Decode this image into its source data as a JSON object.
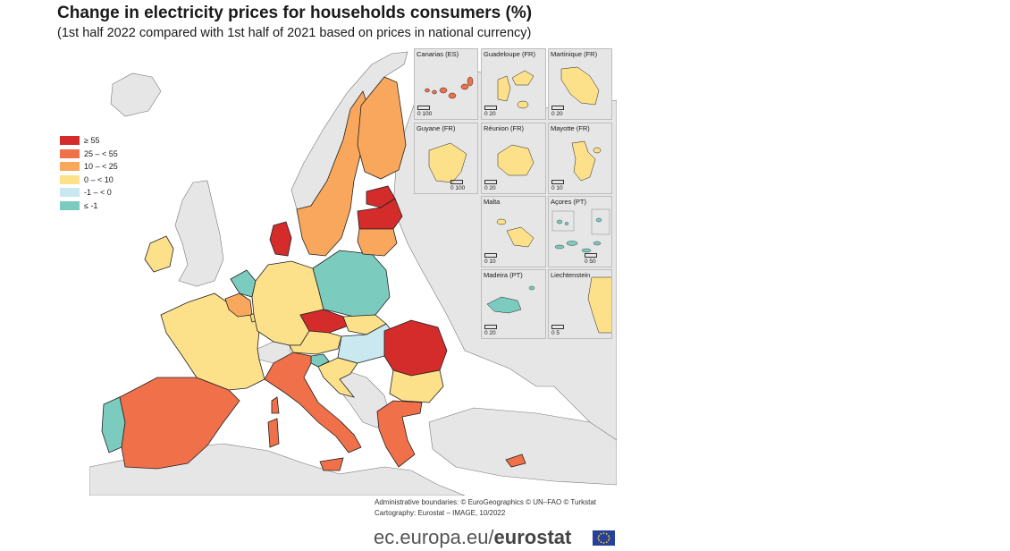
{
  "title": "Change in electricity prices for households consumers (%)",
  "subtitle": "(1st half 2022 compared with 1st half of 2021 based on prices in national currency)",
  "colors": {
    "ge55": "#d42b2b",
    "25to55": "#f0704a",
    "10to25": "#f9a75c",
    "0to10": "#fde08a",
    "m1to0": "#c9e8f0",
    "lem1": "#7bcbbe",
    "no_data": "#e6e6e6",
    "sea": "#ffffff",
    "border": "#222222"
  },
  "legend": {
    "items": [
      {
        "label": "≥ 55",
        "color": "#d42b2b"
      },
      {
        "label": "25 – < 55",
        "color": "#f0704a"
      },
      {
        "label": "10 – < 25",
        "color": "#f9a75c"
      },
      {
        "label": "0 – < 10",
        "color": "#fde08a"
      },
      {
        "label": "-1 – < 0",
        "color": "#c9e8f0"
      },
      {
        "label": "≤ -1",
        "color": "#7bcbbe"
      }
    ]
  },
  "insets": [
    {
      "label": "Canarias (ES)",
      "scale": "0   100"
    },
    {
      "label": "Guadeloupe (FR)",
      "scale": "0   20"
    },
    {
      "label": "Martinique (FR)",
      "scale": "0   20"
    },
    {
      "label": "Guyane (FR)",
      "scale": "0   100"
    },
    {
      "label": "Réunion (FR)",
      "scale": "0   20"
    },
    {
      "label": "Mayotte (FR)",
      "scale": "0   10"
    },
    {
      "label": "Malta",
      "scale": "0   10"
    },
    {
      "label": "Açores (PT)",
      "scale": "0   50"
    },
    {
      "label": "Madeira (PT)",
      "scale": "0   20"
    },
    {
      "label": "Liechtenstein",
      "scale": "0   5"
    }
  ],
  "credits": {
    "line1": "Administrative boundaries: © EuroGeographics © UN–FAO © Turkstat",
    "line2": "Cartography: Eurostat – IMAGE, 10/2022"
  },
  "brand": {
    "site": "ec.europa.eu/",
    "name": "eurostat"
  }
}
